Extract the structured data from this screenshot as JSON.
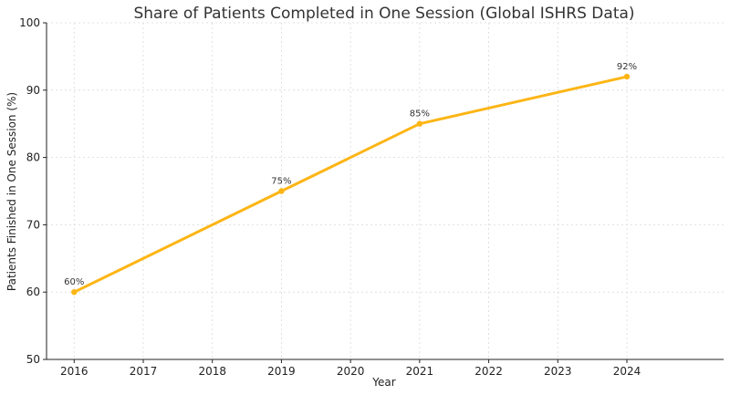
{
  "chart_data": {
    "type": "line",
    "title": "Share of Patients Completed in One Session (Global ISHRS Data)",
    "xlabel": "Year",
    "ylabel": "Patients Finished in One Session (%)",
    "x": [
      2016,
      2019,
      2021,
      2024
    ],
    "series": [
      {
        "values": [
          60,
          75,
          85,
          92
        ],
        "data_labels": [
          "60%",
          "75%",
          "85%",
          "92%"
        ],
        "color": "#FDB515"
      }
    ],
    "xticks": [
      "2016",
      "2017",
      "2018",
      "2019",
      "2020",
      "2021",
      "2022",
      "2023",
      "2024"
    ],
    "yticks": [
      "50",
      "60",
      "70",
      "80",
      "90",
      "100"
    ],
    "xlim": [
      2015.6,
      2025.4
    ],
    "ylim": [
      50,
      100
    ],
    "grid": true
  }
}
